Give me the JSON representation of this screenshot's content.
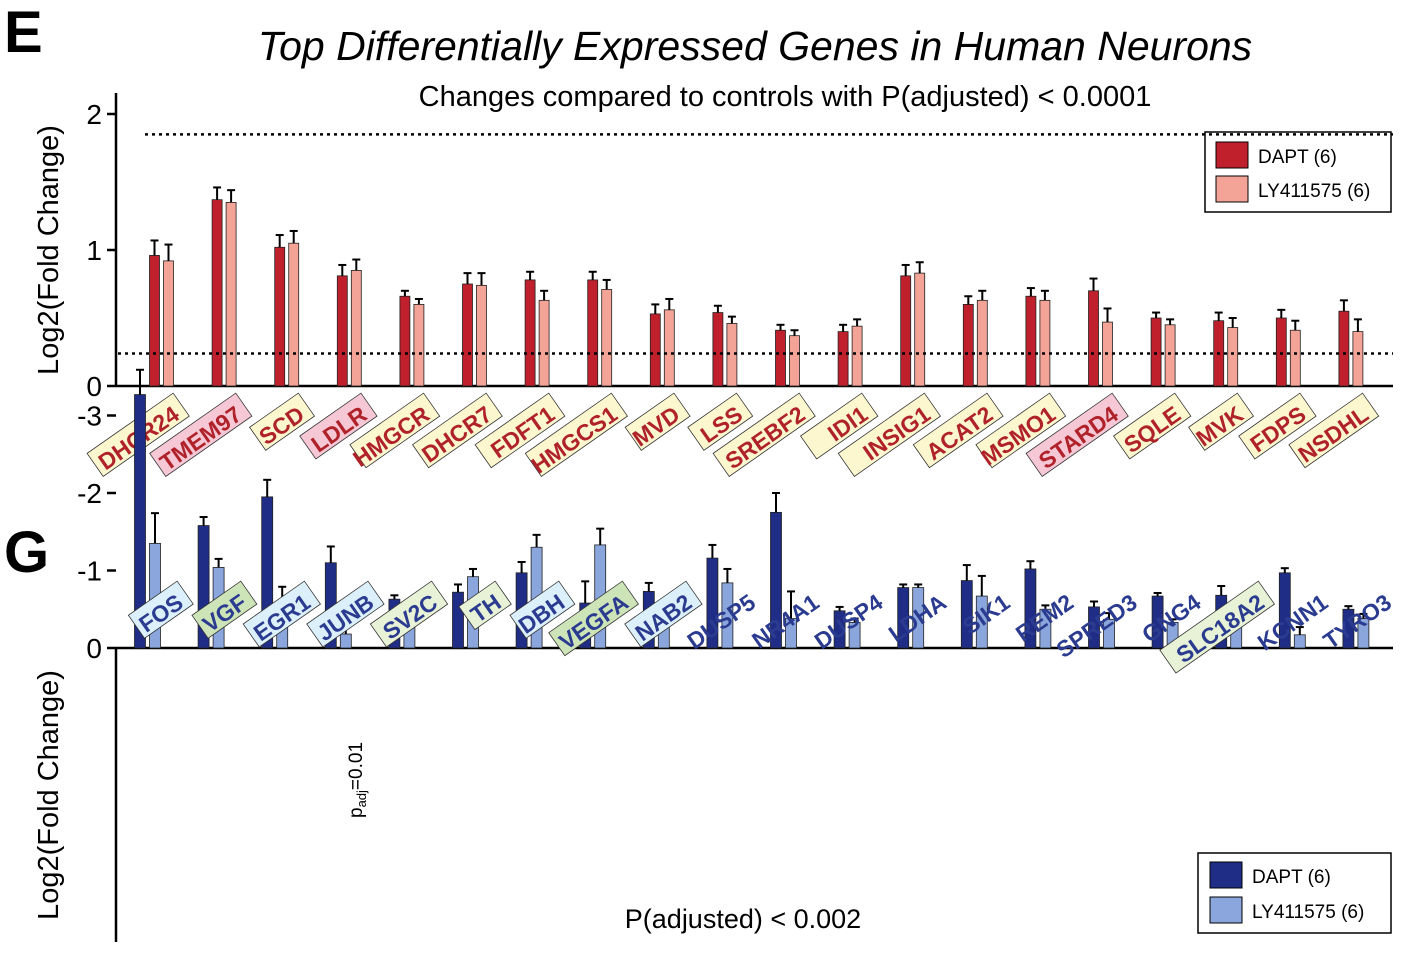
{
  "panels": {
    "top_letter": "E",
    "bottom_letter": "G"
  },
  "colors": {
    "dapt_red": "#c0202c",
    "ly_red": "#f4a397",
    "dapt_blue": "#1f2d86",
    "ly_blue": "#8aa6dc",
    "gene_red": "#b0222a",
    "gene_blue": "#2b3b8f",
    "box_yellow": "#fdf7cf",
    "box_pink": "#f6c8d6",
    "box_lightblue": "#dcf0fb",
    "box_green": "#cde3b8",
    "box_lightgreen": "#e7f2d6"
  },
  "chart_data": [
    {
      "type": "bar",
      "title": "Top Differentially Expressed Genes in Human Neurons",
      "subtitle": "Changes compared to controls with P(adjusted) < 0.0001",
      "xlabel": "",
      "ylabel": "Log2(Fold Change)",
      "ylim": [
        0,
        2
      ],
      "yticks": [
        "0",
        "1",
        "2"
      ],
      "threshold_line": 1.85,
      "legend": "top-right",
      "categories": [
        "DHCR24",
        "TMEM97",
        "SCD",
        "LDLR",
        "HMGCR",
        "DHCR7",
        "FDFT1",
        "HMGCS1",
        "MVD",
        "LSS",
        "SREBF2",
        "IDI1",
        "INSIG1",
        "ACAT2",
        "MSMO1",
        "STARD4",
        "SQLE",
        "MVK",
        "FDPS",
        "NSDHL"
      ],
      "category_box": [
        "yellow",
        "pink",
        "yellow",
        "pink",
        "yellow",
        "yellow",
        "yellow",
        "yellow",
        "yellow",
        "yellow",
        "yellow",
        "yellow",
        "yellow",
        "yellow",
        "yellow",
        "pink",
        "yellow",
        "yellow",
        "yellow",
        "yellow"
      ],
      "series": [
        {
          "name": "DAPT (6)",
          "color": "#c0202c",
          "values": [
            0.96,
            1.37,
            1.02,
            0.81,
            0.66,
            0.75,
            0.78,
            0.78,
            0.53,
            0.54,
            0.41,
            0.4,
            0.81,
            0.6,
            0.66,
            0.7,
            0.5,
            0.48,
            0.5,
            0.55
          ],
          "errors": [
            0.11,
            0.09,
            0.09,
            0.08,
            0.04,
            0.08,
            0.06,
            0.06,
            0.07,
            0.05,
            0.04,
            0.05,
            0.08,
            0.06,
            0.06,
            0.09,
            0.04,
            0.06,
            0.06,
            0.08
          ]
        },
        {
          "name": "LY411575 (6)",
          "color": "#f4a397",
          "values": [
            0.92,
            1.35,
            1.05,
            0.85,
            0.6,
            0.74,
            0.63,
            0.71,
            0.56,
            0.46,
            0.37,
            0.44,
            0.83,
            0.63,
            0.63,
            0.47,
            0.45,
            0.43,
            0.41,
            0.4
          ],
          "errors": [
            0.12,
            0.09,
            0.09,
            0.08,
            0.04,
            0.09,
            0.07,
            0.07,
            0.08,
            0.05,
            0.04,
            0.05,
            0.08,
            0.07,
            0.07,
            0.1,
            0.04,
            0.07,
            0.07,
            0.09
          ]
        }
      ]
    },
    {
      "type": "bar",
      "title": "",
      "subtitle": "P(adjusted) < 0.002",
      "xlabel": "",
      "ylabel": "Log2(Fold Change)",
      "ylim": [
        -3.8,
        0
      ],
      "yticks": [
        "0",
        "-1",
        "-2",
        "-3"
      ],
      "threshold_line": -3.8,
      "legend": "bottom-right",
      "annotation": {
        "prefix": "p",
        "subscript": "adj",
        "suffix": "=0.01",
        "category": "JUNB",
        "series": "LY411575 (6)"
      },
      "categories": [
        "FOS",
        "VGF",
        "EGR1",
        "JUNB",
        "SV2C",
        "TH",
        "DBH",
        "VEGFA",
        "NAB2",
        "DUSP5",
        "NR4A1",
        "DUSP4",
        "LDHA",
        "SIK1",
        "REM2",
        "SPRED3",
        "GNG4",
        "SLC18A2",
        "KCNN1",
        "TYRO3"
      ],
      "category_box": [
        "lightblue",
        "green",
        "lightblue",
        "lightblue",
        "lightgreen",
        "lightgreen",
        "lightblue",
        "green",
        "lightblue",
        "none",
        "none",
        "none",
        "none",
        "none",
        "none",
        "none",
        "none",
        "lightgreen",
        "none",
        "none"
      ],
      "series": [
        {
          "name": "DAPT (6)",
          "color": "#1f2d86",
          "values": [
            -3.27,
            -1.58,
            -1.95,
            -1.1,
            -0.63,
            -0.72,
            -0.97,
            -0.58,
            -0.73,
            -1.16,
            -1.75,
            -0.48,
            -0.78,
            -0.87,
            -1.02,
            -0.53,
            -0.67,
            -0.68,
            -0.97,
            -0.5
          ],
          "errors": [
            0.32,
            0.11,
            0.22,
            0.21,
            0.05,
            0.1,
            0.14,
            0.28,
            0.11,
            0.17,
            0.25,
            0.05,
            0.04,
            0.2,
            0.1,
            0.07,
            0.04,
            0.12,
            0.06,
            0.04
          ]
        },
        {
          "name": "LY411575 (6)",
          "color": "#8aa6dc",
          "values": [
            -1.35,
            -1.04,
            -0.45,
            -0.18,
            -0.38,
            -0.92,
            -1.3,
            -1.33,
            -0.44,
            -0.84,
            -0.38,
            -0.33,
            -0.78,
            -0.67,
            -0.5,
            -0.37,
            -0.33,
            -0.3,
            -0.17,
            -0.38
          ],
          "errors": [
            0.39,
            0.11,
            0.34,
            0.24,
            0.05,
            0.1,
            0.16,
            0.21,
            0.03,
            0.18,
            0.35,
            0.05,
            0.04,
            0.26,
            0.05,
            0.08,
            0.04,
            0.15,
            0.1,
            0.06
          ]
        }
      ]
    }
  ]
}
